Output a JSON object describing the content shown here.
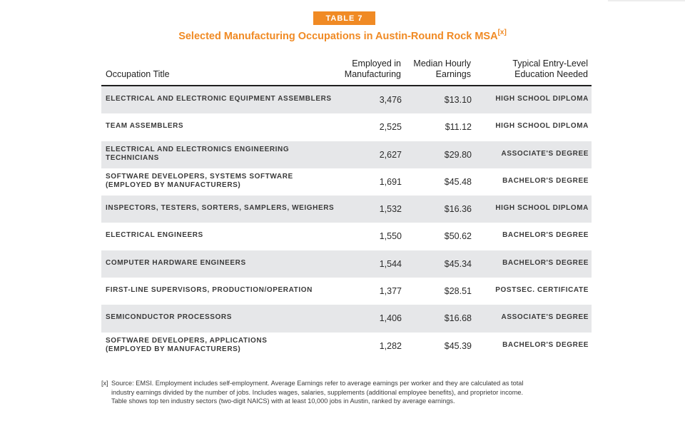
{
  "badge": "TABLE 7",
  "title": "Selected Manufacturing Occupations in Austin-Round Rock MSA",
  "title_note": "[x]",
  "headers": {
    "occupation": "Occupation Title",
    "employed_line1": "Employed in",
    "employed_line2": "Manufacturing",
    "earnings_line1": "Median Hourly",
    "earnings_line2": "Earnings",
    "education_line1": "Typical Entry-Level",
    "education_line2": "Education Needed"
  },
  "rows": [
    {
      "occupation_line1": "ELECTRICAL AND ELECTRONIC EQUIPMENT ASSEMBLERS",
      "occupation_line2": "",
      "employed": "3,476",
      "earnings": "$13.10",
      "education": "HIGH SCHOOL DIPLOMA"
    },
    {
      "occupation_line1": "TEAM ASSEMBLERS",
      "occupation_line2": "",
      "employed": "2,525",
      "earnings": "$11.12",
      "education": "HIGH SCHOOL DIPLOMA"
    },
    {
      "occupation_line1": "ELECTRICAL AND ELECTRONICS ENGINEERING",
      "occupation_line2": "TECHNICIANS",
      "employed": "2,627",
      "earnings": "$29.80",
      "education": "ASSOCIATE'S DEGREE"
    },
    {
      "occupation_line1": "SOFTWARE DEVELOPERS, SYSTEMS SOFTWARE",
      "occupation_line2": "(EMPLOYED BY MANUFACTURERS)",
      "employed": "1,691",
      "earnings": "$45.48",
      "education": "BACHELOR'S DEGREE"
    },
    {
      "occupation_line1": "INSPECTORS, TESTERS, SORTERS, SAMPLERS, WEIGHERS",
      "occupation_line2": "",
      "employed": "1,532",
      "earnings": "$16.36",
      "education": "HIGH SCHOOL DIPLOMA"
    },
    {
      "occupation_line1": "ELECTRICAL ENGINEERS",
      "occupation_line2": "",
      "employed": "1,550",
      "earnings": "$50.62",
      "education": "BACHELOR'S DEGREE"
    },
    {
      "occupation_line1": "COMPUTER HARDWARE ENGINEERS",
      "occupation_line2": "",
      "employed": "1,544",
      "earnings": "$45.34",
      "education": "BACHELOR'S DEGREE"
    },
    {
      "occupation_line1": "FIRST-LINE SUPERVISORS, PRODUCTION/OPERATION",
      "occupation_line2": "",
      "employed": "1,377",
      "earnings": "$28.51",
      "education": "POSTSEC. CERTIFICATE"
    },
    {
      "occupation_line1": "SEMICONDUCTOR PROCESSORS",
      "occupation_line2": "",
      "employed": "1,406",
      "earnings": "$16.68",
      "education": "ASSOCIATE'S DEGREE"
    },
    {
      "occupation_line1": "SOFTWARE DEVELOPERS, APPLICATIONS",
      "occupation_line2": "(EMPLOYED BY MANUFACTURERS)",
      "employed": "1,282",
      "earnings": "$45.39",
      "education": "BACHELOR'S DEGREE"
    }
  ],
  "footnote": {
    "mark": "[x]",
    "line1": "Source: EMSI. Employment includes self-employment. Average Earnings refer to average earnings per worker and they are calculated as total",
    "line2": "industry earnings divided by the number of jobs. Includes wages, salaries, supplements (additional employee benefits), and proprietor income.",
    "line3": "Table shows top ten industry sectors (two-digit NAICS) with at least 10,000 jobs in Austin, ranked by average earnings."
  },
  "colors": {
    "accent": "#f08a24",
    "row_shade": "#e6e7e9",
    "rule": "#1f1f1f"
  }
}
